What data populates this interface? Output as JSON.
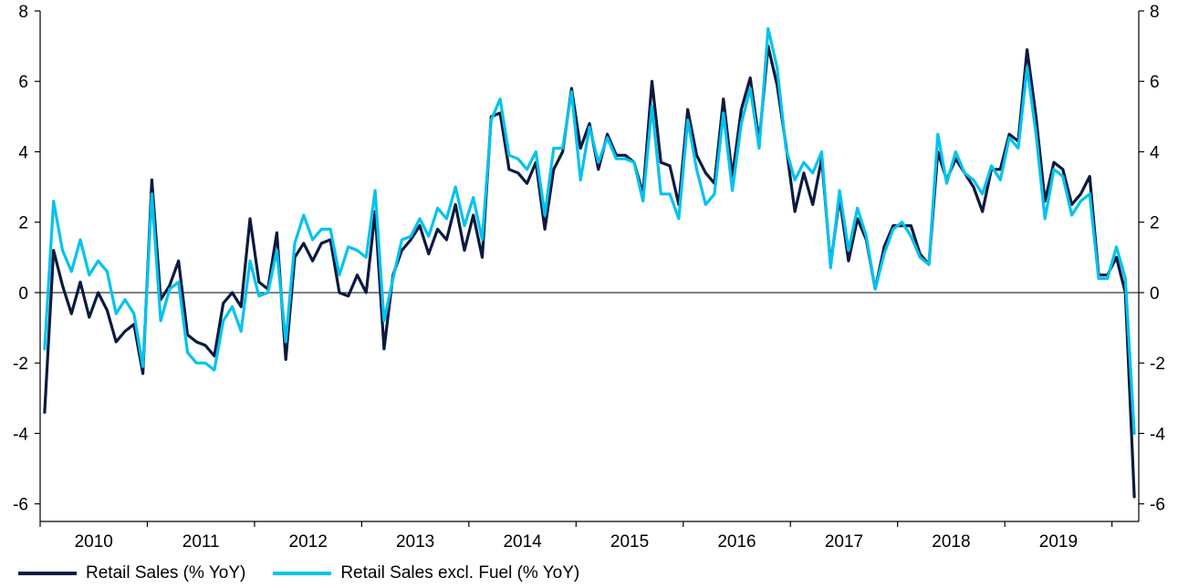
{
  "chart_data": {
    "type": "line",
    "x_start": "2010-01",
    "x_end": "2020-04",
    "ylim": [
      -6.5,
      8
    ],
    "y_ticks": [
      -6,
      -4,
      -2,
      0,
      2,
      4,
      6,
      8
    ],
    "x_tick_labels": [
      "2010",
      "2011",
      "2012",
      "2013",
      "2014",
      "2015",
      "2016",
      "2017",
      "2018",
      "2019"
    ],
    "grid": false,
    "legend_position": "bottom",
    "colors": {
      "retail": "#0b1a3e",
      "excl_fuel": "#00c3f0",
      "zero_line": "#000000"
    },
    "series": [
      {
        "name": "Retail Sales (% YoY)",
        "color": "#0b1a3e",
        "values": [
          -3.4,
          1.2,
          0.2,
          -0.6,
          0.3,
          -0.7,
          0.0,
          -0.5,
          -1.4,
          -1.1,
          -0.9,
          -2.3,
          3.2,
          -0.2,
          0.2,
          0.9,
          -1.2,
          -1.4,
          -1.5,
          -1.8,
          -0.3,
          0.0,
          -0.4,
          2.1,
          0.3,
          0.1,
          1.7,
          -1.9,
          1.0,
          1.4,
          0.9,
          1.4,
          1.5,
          0.0,
          -0.1,
          0.5,
          0.0,
          2.3,
          -1.6,
          0.5,
          1.2,
          1.5,
          1.9,
          1.1,
          1.8,
          1.5,
          2.5,
          1.2,
          2.2,
          1.0,
          5.0,
          5.1,
          3.5,
          3.4,
          3.1,
          3.7,
          1.8,
          3.5,
          4.0,
          5.8,
          4.1,
          4.8,
          3.5,
          4.5,
          3.9,
          3.9,
          3.7,
          2.8,
          6.0,
          3.7,
          3.6,
          2.5,
          5.2,
          3.9,
          3.4,
          3.1,
          5.5,
          3.3,
          5.2,
          6.1,
          4.3,
          7.0,
          5.9,
          4.2,
          2.3,
          3.4,
          2.5,
          3.8,
          0.8,
          2.7,
          0.9,
          2.1,
          1.5,
          0.1,
          1.3,
          1.9,
          1.9,
          1.9,
          1.1,
          0.8,
          4.0,
          3.2,
          3.8,
          3.4,
          3.0,
          2.3,
          3.5,
          3.5,
          4.5,
          4.3,
          6.9,
          5.0,
          2.6,
          3.7,
          3.5,
          2.5,
          2.8,
          3.3,
          0.5,
          0.5,
          1.0,
          0.0,
          -5.8
        ]
      },
      {
        "name": "Retail Sales excl. Fuel (% YoY)",
        "color": "#00c3f0",
        "values": [
          -1.6,
          2.6,
          1.2,
          0.6,
          1.5,
          0.5,
          0.9,
          0.6,
          -0.6,
          -0.2,
          -0.6,
          -2.1,
          2.8,
          -0.8,
          0.1,
          0.3,
          -1.7,
          -2.0,
          -2.0,
          -2.2,
          -0.8,
          -0.4,
          -1.1,
          0.9,
          -0.1,
          0.0,
          1.2,
          -1.4,
          1.4,
          2.2,
          1.5,
          1.8,
          1.8,
          0.5,
          1.3,
          1.2,
          1.0,
          2.9,
          -0.8,
          0.4,
          1.5,
          1.6,
          2.1,
          1.6,
          2.4,
          2.1,
          3.0,
          1.9,
          2.7,
          1.5,
          4.9,
          5.5,
          3.9,
          3.8,
          3.5,
          4.0,
          2.2,
          4.1,
          4.1,
          5.7,
          3.2,
          4.7,
          3.7,
          4.4,
          3.8,
          3.8,
          3.7,
          2.6,
          5.3,
          2.8,
          2.8,
          2.1,
          4.9,
          3.5,
          2.5,
          2.8,
          5.1,
          2.9,
          4.8,
          5.8,
          4.1,
          7.5,
          6.4,
          4.1,
          3.2,
          3.7,
          3.4,
          4.0,
          0.7,
          2.9,
          1.2,
          2.4,
          1.6,
          0.1,
          1.1,
          1.8,
          2.0,
          1.6,
          1.0,
          0.8,
          4.5,
          3.1,
          4.0,
          3.4,
          3.2,
          2.8,
          3.6,
          3.2,
          4.4,
          4.1,
          6.4,
          4.5,
          2.1,
          3.5,
          3.3,
          2.2,
          2.6,
          2.8,
          0.4,
          0.4,
          1.3,
          0.4,
          -4.0
        ]
      }
    ]
  }
}
